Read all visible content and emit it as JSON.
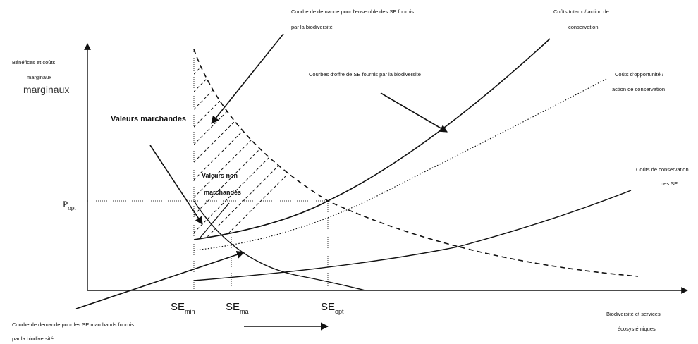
{
  "axes": {
    "y_label_line1": "Bénéfices et coûts",
    "y_label_line2": "marginaux",
    "y_label_ghost": "marginaux",
    "x_label_line1": "Biodiversité et services",
    "x_label_line2": "écosystémiques"
  },
  "labels": {
    "demand_total_line1": "Courbe de demande pour l'ensemble des SE fournis",
    "demand_total_line2": "par la biodiversité",
    "total_costs_line1": "Coûts totaux / action de",
    "total_costs_line2": "conservation",
    "supply_curves": "Courbes d'offre de SE fournis par la biodiversité",
    "opportunity_costs_line1": "Coûts d'opportunité /",
    "opportunity_costs_line2": "action de conservation",
    "conservation_costs_line1": "Coûts de conservation",
    "conservation_costs_line2": "des SE",
    "market_values": "Valeurs marchandes",
    "non_market_line1": "Valeurs non",
    "non_market_line2": "marchandes",
    "demand_market_line1": "Courbe de demande pour les SE marchands fournis",
    "demand_market_line2": "par la biodiversité"
  },
  "price": {
    "main": "P",
    "sub": "opt"
  },
  "ticks": [
    {
      "main": "SE",
      "sub": "min"
    },
    {
      "main": "SE",
      "sub": "ma"
    },
    {
      "main": "SE",
      "sub": "opt"
    }
  ],
  "colors": {
    "ink": "#111111",
    "background": "#ffffff"
  }
}
